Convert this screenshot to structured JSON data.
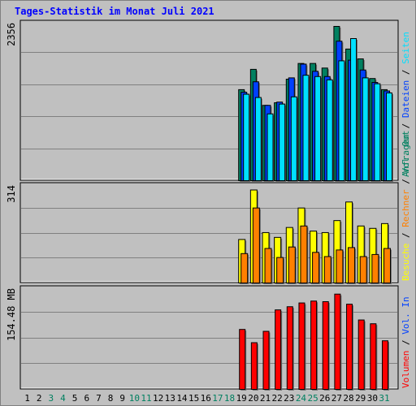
{
  "title": "Tages-Statistik im Monat Juli 2021",
  "colors": {
    "background": "#c0c0c0",
    "grid": "#808080",
    "anfragen": "#008060",
    "dateien": "#0040ff",
    "seiten": "#00e0ff",
    "besuche": "#ffff00",
    "rechner": "#ff8000",
    "volumen": "#ff0000",
    "weekend_label": "#008060",
    "weekday_label": "#000000"
  },
  "chart_data": [
    {
      "type": "bar",
      "y_max_label": "2356",
      "ylim": [
        0,
        2356
      ],
      "legend": [
        {
          "text": "Anfragen",
          "color": "#008060"
        },
        {
          "text": "Dateien",
          "color": "#0040ff"
        },
        {
          "text": "Seiten",
          "color": "#00e0ff"
        }
      ],
      "x": [
        19,
        20,
        21,
        22,
        23,
        24,
        25,
        26,
        27,
        28,
        29,
        30,
        31
      ],
      "series": [
        {
          "name": "Anfragen",
          "values": [
            1390,
            1700,
            1150,
            1190,
            1550,
            1790,
            1790,
            1720,
            2356,
            2010,
            1860,
            1560,
            1390
          ]
        },
        {
          "name": "Dateien",
          "values": [
            1350,
            1510,
            1150,
            1200,
            1570,
            1780,
            1670,
            1590,
            2130,
            1840,
            1690,
            1500,
            1370
          ]
        },
        {
          "name": "Seiten",
          "values": [
            1320,
            1270,
            1020,
            1170,
            1280,
            1610,
            1590,
            1540,
            1830,
            2170,
            1570,
            1480,
            1340
          ]
        }
      ]
    },
    {
      "type": "bar",
      "y_max_label": "314",
      "ylim": [
        0,
        314
      ],
      "legend": [
        {
          "text": "Besuche",
          "color": "#ffff00"
        },
        {
          "text": "Rechner",
          "color": "#ff8000"
        },
        {
          "text": "Vol. Out",
          "color": "#008060"
        }
      ],
      "x": [
        19,
        20,
        21,
        22,
        23,
        24,
        25,
        26,
        27,
        28,
        29,
        30,
        31
      ],
      "series": [
        {
          "name": "Besuche",
          "values": [
            145,
            310,
            168,
            152,
            185,
            250,
            173,
            168,
            208,
            270,
            190,
            182,
            198
          ]
        },
        {
          "name": "Rechner",
          "values": [
            98,
            250,
            115,
            85,
            120,
            190,
            102,
            88,
            110,
            118,
            88,
            95,
            115
          ]
        }
      ]
    },
    {
      "type": "bar",
      "y_max_label": "154.48 MB",
      "ylim": [
        0,
        154.48
      ],
      "legend": [
        {
          "text": "Volumen",
          "color": "#ff0000"
        },
        {
          "text": "Vol. In",
          "color": "#0040ff"
        }
      ],
      "x": [
        19,
        20,
        21,
        22,
        23,
        24,
        25,
        26,
        27,
        28,
        29,
        30,
        31
      ],
      "series": [
        {
          "name": "Volumen",
          "values": [
            95,
            74,
            92,
            126,
            131,
            137,
            140,
            139,
            151,
            135,
            110,
            104,
            77
          ]
        }
      ]
    }
  ],
  "days": [
    {
      "label": "1",
      "weekend": false
    },
    {
      "label": "2",
      "weekend": false
    },
    {
      "label": "3",
      "weekend": true
    },
    {
      "label": "4",
      "weekend": true
    },
    {
      "label": "5",
      "weekend": false
    },
    {
      "label": "6",
      "weekend": false
    },
    {
      "label": "7",
      "weekend": false
    },
    {
      "label": "8",
      "weekend": false
    },
    {
      "label": "9",
      "weekend": false
    },
    {
      "label": "10",
      "weekend": true
    },
    {
      "label": "11",
      "weekend": true
    },
    {
      "label": "12",
      "weekend": false
    },
    {
      "label": "13",
      "weekend": false
    },
    {
      "label": "14",
      "weekend": false
    },
    {
      "label": "15",
      "weekend": false
    },
    {
      "label": "16",
      "weekend": false
    },
    {
      "label": "17",
      "weekend": true
    },
    {
      "label": "18",
      "weekend": true
    },
    {
      "label": "19",
      "weekend": false
    },
    {
      "label": "20",
      "weekend": false
    },
    {
      "label": "21",
      "weekend": false
    },
    {
      "label": "22",
      "weekend": false
    },
    {
      "label": "23",
      "weekend": false
    },
    {
      "label": "24",
      "weekend": true
    },
    {
      "label": "25",
      "weekend": true
    },
    {
      "label": "26",
      "weekend": false
    },
    {
      "label": "27",
      "weekend": false
    },
    {
      "label": "28",
      "weekend": false
    },
    {
      "label": "29",
      "weekend": false
    },
    {
      "label": "30",
      "weekend": false
    },
    {
      "label": "31",
      "weekend": true
    }
  ]
}
